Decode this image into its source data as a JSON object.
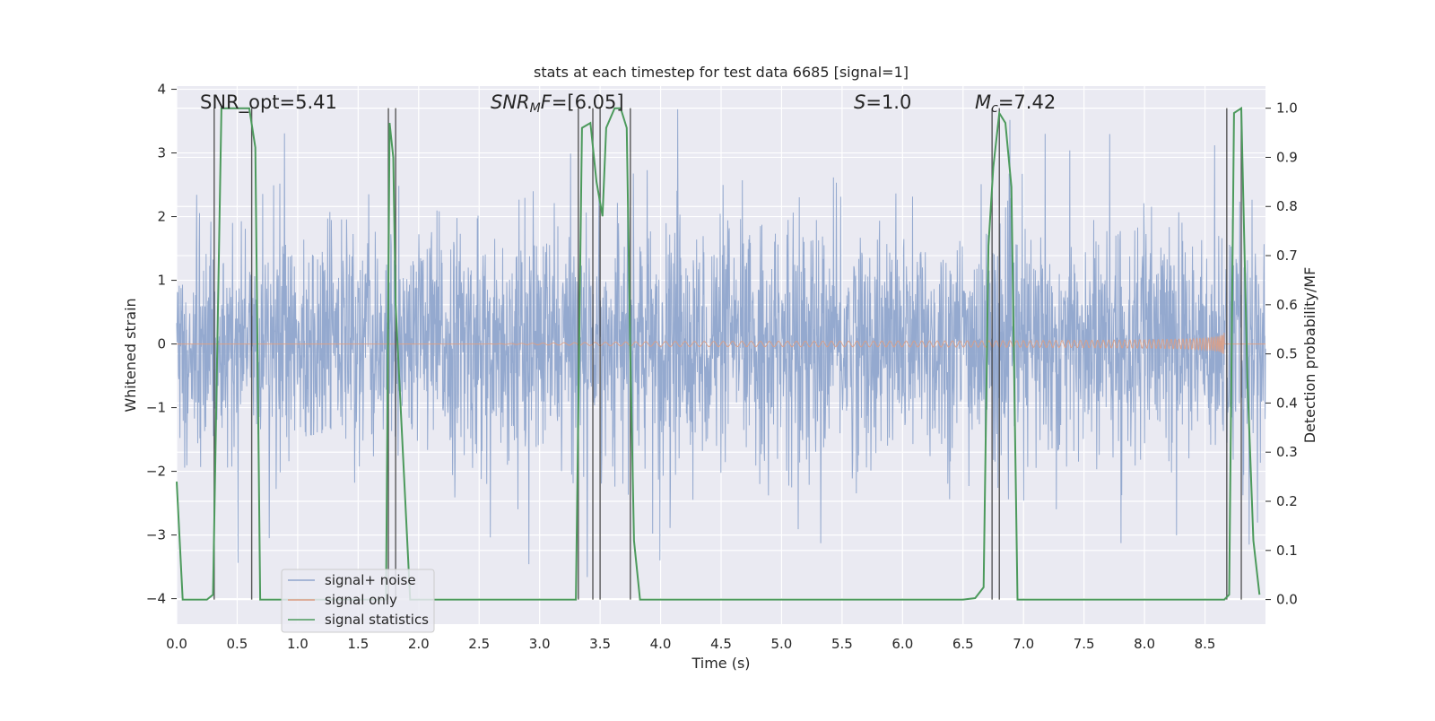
{
  "chart_data": {
    "type": "line",
    "title": "stats at each timestep for test data 6685 [signal=1]",
    "xlabel": "Time (s)",
    "ylabel_left": "Whitened strain",
    "ylabel_right": "Detection probability/MF",
    "xlim": [
      0.0,
      9.0
    ],
    "ylim_left": [
      -4.4,
      4.05
    ],
    "ylim_right": [
      -0.05,
      1.045
    ],
    "x_ticks": [
      "0.0",
      "0.5",
      "1.0",
      "1.5",
      "2.0",
      "2.5",
      "3.0",
      "3.5",
      "4.0",
      "4.5",
      "5.0",
      "5.5",
      "6.0",
      "6.5",
      "7.0",
      "7.5",
      "8.0",
      "8.5"
    ],
    "x_tick_values": [
      0.0,
      0.5,
      1.0,
      1.5,
      2.0,
      2.5,
      3.0,
      3.5,
      4.0,
      4.5,
      5.0,
      5.5,
      6.0,
      6.5,
      7.0,
      7.5,
      8.0,
      8.5
    ],
    "y_ticks_left": [
      "4",
      "3",
      "2",
      "1",
      "0",
      "−1",
      "−2",
      "−3",
      "−4"
    ],
    "y_tick_values_left": [
      4,
      3,
      2,
      1,
      0,
      -1,
      -2,
      -3,
      -4
    ],
    "y_ticks_right": [
      "1.0",
      "0.9",
      "0.8",
      "0.7",
      "0.6",
      "0.5",
      "0.4",
      "0.3",
      "0.2",
      "0.1",
      "0.0"
    ],
    "y_tick_values_right": [
      1.0,
      0.9,
      0.8,
      0.7,
      0.6,
      0.5,
      0.4,
      0.3,
      0.2,
      0.1,
      0.0
    ],
    "annotations": {
      "snr_opt": "SNR_opt=5.41",
      "snr_mf": "=[6.05]",
      "snr_mf_main": "SNR",
      "snr_mf_sub": "M",
      "snr_mf_tail": "F",
      "s_stat_var": "S",
      "s_stat_val": "=1.0",
      "mc_var": "M",
      "mc_sub": "c",
      "mc_val": "=7.42"
    },
    "series": [
      {
        "name": "signal+ noise",
        "color": "#8fa5cc",
        "axis": "left",
        "description": "noisy whitened strain, roughly between -2.5 and 2.5 with spikes to about 3.7"
      },
      {
        "name": "signal only",
        "color": "#dd9e84",
        "axis": "left",
        "chirp_end_time": 8.66,
        "chirp_peak_amplitude": 0.7
      },
      {
        "name": "signal statistics",
        "color": "#4c9a5c",
        "axis": "right",
        "x": [
          0.0,
          0.05,
          0.25,
          0.3,
          0.37,
          0.6,
          0.65,
          0.69,
          1.73,
          1.76,
          1.79,
          1.81,
          1.93,
          3.3,
          3.35,
          3.42,
          3.47,
          3.52,
          3.55,
          3.62,
          3.67,
          3.72,
          3.75,
          3.78,
          3.83,
          3.9,
          6.5,
          6.6,
          6.67,
          6.71,
          6.75,
          6.8,
          6.85,
          6.9,
          6.95,
          7.0,
          8.66,
          8.7,
          8.74,
          8.8,
          8.85,
          8.9,
          8.95
        ],
        "y": [
          0.24,
          0.0,
          0.0,
          0.01,
          1.0,
          1.0,
          0.92,
          0.0,
          0.0,
          0.97,
          0.9,
          0.6,
          0.0,
          0.0,
          0.96,
          0.97,
          0.85,
          0.78,
          0.96,
          1.0,
          1.0,
          0.96,
          0.5,
          0.12,
          0.0,
          0.0,
          0.0,
          0.003,
          0.025,
          0.72,
          0.88,
          0.99,
          0.97,
          0.84,
          0.0,
          0.0,
          0.0,
          0.01,
          0.99,
          1.0,
          0.45,
          0.12,
          0.01
        ]
      }
    ],
    "vertical_markers": [
      0.31,
      0.62,
      1.75,
      1.81,
      3.32,
      3.44,
      3.5,
      3.75,
      6.74,
      6.8,
      8.68,
      8.8
    ],
    "legend_position": "lower-left"
  }
}
